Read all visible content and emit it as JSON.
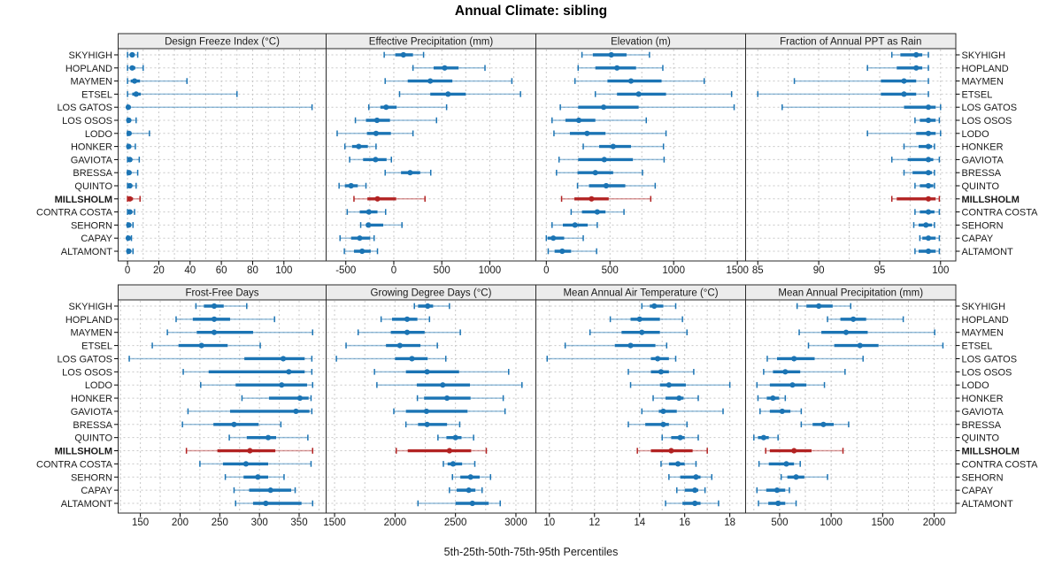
{
  "title": "Annual Climate: sibling",
  "caption": "5th-25th-50th-75th-95th Percentiles",
  "colors": {
    "series_blue": "#1b74b4",
    "highlight_red": "#b22222",
    "strip_bg": "#ececec",
    "grid": "#c8c8c8",
    "panel_border": "#2a2a2a",
    "text": "#1a1a1a"
  },
  "chart_data": {
    "type": "scatter",
    "subtype": "percentile-interval-dotplot",
    "title": "Annual Climate: sibling",
    "footer": "5th-25th-50th-75th-95th Percentiles",
    "percentile_labels": [
      "p5",
      "p25",
      "p50",
      "p75",
      "p95"
    ],
    "legend_position": "none",
    "grid": true,
    "highlight": "MILLSHOLM",
    "categories": [
      "SKYHIGH",
      "HOPLAND",
      "MAYMEN",
      "ETSEL",
      "LOS GATOS",
      "LOS OSOS",
      "LODO",
      "HONKER",
      "GAVIOTA",
      "BRESSA",
      "QUINTO",
      "MILLSHOLM",
      "CONTRA COSTA",
      "SEHORN",
      "CAPAY",
      "ALTAMONT"
    ],
    "panels": [
      {
        "title": "Design Freeze Index (°C)",
        "xlim": [
          -6,
          127
        ],
        "ticks": [
          0,
          20,
          40,
          60,
          80,
          100
        ],
        "values": [
          [
            0,
            1.5,
            3,
            4.5,
            6.5
          ],
          [
            0,
            1.5,
            3,
            5,
            10
          ],
          [
            0,
            2,
            4.5,
            8,
            38
          ],
          [
            0,
            3,
            5.5,
            8.5,
            70
          ],
          [
            0,
            0,
            0.5,
            1.5,
            118
          ],
          [
            0,
            0,
            0.8,
            2,
            5.5
          ],
          [
            0,
            0.3,
            1,
            2.5,
            14
          ],
          [
            0,
            0.2,
            0.8,
            2,
            5
          ],
          [
            0,
            0.5,
            1.5,
            3,
            7.5
          ],
          [
            0,
            0.3,
            1,
            2.5,
            6.5
          ],
          [
            0,
            0.5,
            1.5,
            3,
            5.5
          ],
          [
            0,
            0.5,
            1.5,
            3.5,
            8
          ],
          [
            0,
            0.5,
            1.5,
            3,
            4.5
          ],
          [
            0,
            0.2,
            0.8,
            1.8,
            3.5
          ],
          [
            0,
            0,
            0.5,
            1.2,
            2.5
          ],
          [
            0,
            0.2,
            0.8,
            2,
            3.5
          ]
        ]
      },
      {
        "title": "Effective Precipitation (mm)",
        "xlim": [
          -705,
          1480
        ],
        "ticks": [
          -500,
          0,
          500,
          1000
        ],
        "values": [
          [
            -100,
            15,
            100,
            200,
            310
          ],
          [
            200,
            415,
            530,
            675,
            950
          ],
          [
            -90,
            145,
            380,
            610,
            1230
          ],
          [
            60,
            380,
            565,
            750,
            1320
          ],
          [
            -260,
            -140,
            -80,
            30,
            550
          ],
          [
            -400,
            -290,
            -175,
            -40,
            445
          ],
          [
            -590,
            -280,
            -185,
            -30,
            200
          ],
          [
            -510,
            -435,
            -365,
            -270,
            -185
          ],
          [
            -460,
            -320,
            -190,
            -75,
            -25
          ],
          [
            -90,
            75,
            170,
            275,
            385
          ],
          [
            -570,
            -510,
            -445,
            -375,
            -290
          ],
          [
            -415,
            -275,
            -170,
            25,
            325
          ],
          [
            -485,
            -355,
            -260,
            -170,
            -85
          ],
          [
            -345,
            -290,
            -265,
            -110,
            85
          ],
          [
            -560,
            -445,
            -355,
            -245,
            -205
          ],
          [
            -515,
            -415,
            -330,
            -240,
            -170
          ]
        ]
      },
      {
        "title": "Elevation (m)",
        "xlim": [
          -82,
          1565
        ],
        "ticks": [
          0,
          500,
          1000,
          1500
        ],
        "values": [
          [
            280,
            365,
            510,
            630,
            810
          ],
          [
            250,
            385,
            555,
            705,
            915
          ],
          [
            225,
            480,
            665,
            905,
            1240
          ],
          [
            385,
            555,
            725,
            940,
            1455
          ],
          [
            110,
            250,
            450,
            725,
            1475
          ],
          [
            45,
            150,
            255,
            385,
            785
          ],
          [
            60,
            185,
            320,
            465,
            940
          ],
          [
            290,
            415,
            525,
            665,
            920
          ],
          [
            100,
            250,
            455,
            680,
            925
          ],
          [
            80,
            245,
            385,
            525,
            755
          ],
          [
            245,
            335,
            470,
            620,
            855
          ],
          [
            120,
            220,
            355,
            490,
            820
          ],
          [
            195,
            280,
            400,
            465,
            610
          ],
          [
            45,
            130,
            225,
            325,
            400
          ],
          [
            0,
            10,
            55,
            140,
            290
          ],
          [
            15,
            65,
            125,
            195,
            395
          ]
        ]
      },
      {
        "title": "Fraction of Annual PPT as Rain",
        "xlim": [
          84,
          101.25
        ],
        "ticks": [
          85,
          90,
          95,
          100
        ],
        "values": [
          [
            96,
            96.7,
            98,
            98.5,
            99
          ],
          [
            94,
            96.4,
            98,
            98.5,
            99
          ],
          [
            88,
            95.1,
            97,
            98,
            99
          ],
          [
            85,
            95.1,
            97,
            98,
            99
          ],
          [
            87,
            97,
            99,
            99.6,
            100
          ],
          [
            97.9,
            98.3,
            99,
            99.6,
            99.9
          ],
          [
            94,
            98,
            99,
            99.6,
            100
          ],
          [
            97,
            98.2,
            99,
            99.3,
            99.5
          ],
          [
            96,
            97.3,
            99,
            99.4,
            99.9
          ],
          [
            97,
            97.7,
            99,
            99.3,
            99.5
          ],
          [
            97.9,
            98.3,
            99,
            99.4,
            99.5
          ],
          [
            96,
            96.4,
            99,
            99.6,
            99.9
          ],
          [
            97.9,
            98.3,
            99,
            99.5,
            99.9
          ],
          [
            97.8,
            98.2,
            98.8,
            99.3,
            99.5
          ],
          [
            98.3,
            98.5,
            99,
            99.6,
            99.9
          ],
          [
            97.9,
            98.2,
            99,
            99.6,
            99.9
          ]
        ]
      },
      {
        "title": "Frost-Free Days",
        "xlim": [
          122,
          384
        ],
        "ticks": [
          150,
          200,
          250,
          300,
          350
        ],
        "values": [
          [
            220,
            230,
            243,
            255,
            284
          ],
          [
            195,
            216,
            243,
            263,
            319
          ],
          [
            184,
            221,
            243,
            292,
            367
          ],
          [
            165,
            198,
            227,
            260,
            301
          ],
          [
            136,
            281,
            330,
            357,
            366
          ],
          [
            204,
            236,
            337,
            357,
            366
          ],
          [
            226,
            270,
            328,
            360,
            367
          ],
          [
            278,
            312,
            351,
            362,
            365
          ],
          [
            210,
            263,
            346,
            363,
            366
          ],
          [
            203,
            242,
            268,
            299,
            327
          ],
          [
            262,
            284,
            311,
            321,
            361
          ],
          [
            208,
            247,
            288,
            320,
            367
          ],
          [
            225,
            254,
            283,
            311,
            365
          ],
          [
            257,
            280,
            298,
            311,
            331
          ],
          [
            268,
            287,
            314,
            340,
            345
          ],
          [
            270,
            292,
            308,
            353,
            367
          ]
        ]
      },
      {
        "title": "Growing Degree Days (°C)",
        "xlim": [
          1430,
          3165
        ],
        "ticks": [
          1500,
          2000,
          2500,
          3000
        ],
        "values": [
          [
            2160,
            2190,
            2270,
            2315,
            2450
          ],
          [
            1885,
            1975,
            2100,
            2185,
            2285
          ],
          [
            1695,
            1965,
            2100,
            2245,
            2540
          ],
          [
            1595,
            1925,
            2040,
            2210,
            2350
          ],
          [
            1515,
            2000,
            2140,
            2270,
            2420
          ],
          [
            1830,
            2090,
            2265,
            2530,
            2940
          ],
          [
            1850,
            2180,
            2395,
            2620,
            3050
          ],
          [
            2185,
            2240,
            2430,
            2625,
            2895
          ],
          [
            1990,
            2090,
            2260,
            2600,
            2910
          ],
          [
            2090,
            2190,
            2265,
            2430,
            2535
          ],
          [
            2355,
            2425,
            2500,
            2550,
            2650
          ],
          [
            2010,
            2105,
            2450,
            2630,
            2755
          ],
          [
            2400,
            2435,
            2480,
            2555,
            2660
          ],
          [
            2475,
            2540,
            2625,
            2700,
            2790
          ],
          [
            2450,
            2510,
            2610,
            2665,
            2720
          ],
          [
            2190,
            2500,
            2640,
            2775,
            2870
          ]
        ]
      },
      {
        "title": "Mean Annual Air Temperature (°C)",
        "xlim": [
          9.4,
          18.7
        ],
        "ticks": [
          10,
          12,
          14,
          16,
          18
        ],
        "values": [
          [
            14.1,
            14.45,
            14.65,
            15.05,
            15.6
          ],
          [
            12.7,
            13.6,
            14.0,
            14.9,
            15.9
          ],
          [
            11.8,
            13.2,
            14.1,
            14.9,
            16.1
          ],
          [
            10.7,
            12.9,
            13.6,
            14.7,
            15.2
          ],
          [
            9.9,
            14.5,
            14.8,
            15.3,
            15.6
          ],
          [
            13.5,
            14.5,
            14.95,
            15.3,
            16.4
          ],
          [
            13.6,
            14.9,
            15.3,
            16.05,
            18.0
          ],
          [
            14.6,
            15.15,
            15.75,
            15.95,
            16.6
          ],
          [
            14.1,
            14.85,
            15.05,
            15.65,
            17.7
          ],
          [
            13.5,
            14.25,
            15.05,
            15.3,
            16.1
          ],
          [
            15.0,
            15.4,
            15.8,
            16.0,
            16.6
          ],
          [
            13.9,
            14.5,
            15.4,
            16.35,
            17.0
          ],
          [
            14.95,
            15.3,
            15.7,
            16.0,
            16.5
          ],
          [
            15.3,
            15.8,
            16.5,
            16.7,
            17.2
          ],
          [
            15.65,
            16.0,
            16.45,
            16.6,
            16.9
          ],
          [
            15.15,
            15.9,
            16.45,
            16.7,
            17.5
          ]
        ]
      },
      {
        "title": "Mean Annual Precipitation (mm)",
        "xlim": [
          170,
          2210
        ],
        "ticks": [
          500,
          1000,
          1500,
          2000
        ],
        "values": [
          [
            670,
            760,
            880,
            1015,
            1190
          ],
          [
            965,
            1090,
            1215,
            1340,
            1700
          ],
          [
            690,
            905,
            1145,
            1355,
            2005
          ],
          [
            780,
            1030,
            1280,
            1460,
            2085
          ],
          [
            380,
            475,
            640,
            840,
            1310
          ],
          [
            345,
            435,
            555,
            700,
            1135
          ],
          [
            280,
            405,
            625,
            760,
            935
          ],
          [
            290,
            375,
            435,
            495,
            555
          ],
          [
            310,
            405,
            525,
            605,
            710
          ],
          [
            710,
            820,
            925,
            1025,
            1170
          ],
          [
            250,
            290,
            345,
            395,
            485
          ],
          [
            365,
            405,
            640,
            810,
            1115
          ],
          [
            300,
            395,
            565,
            640,
            700
          ],
          [
            515,
            575,
            660,
            740,
            965
          ],
          [
            280,
            370,
            475,
            555,
            595
          ],
          [
            295,
            390,
            485,
            555,
            660
          ]
        ]
      }
    ]
  }
}
